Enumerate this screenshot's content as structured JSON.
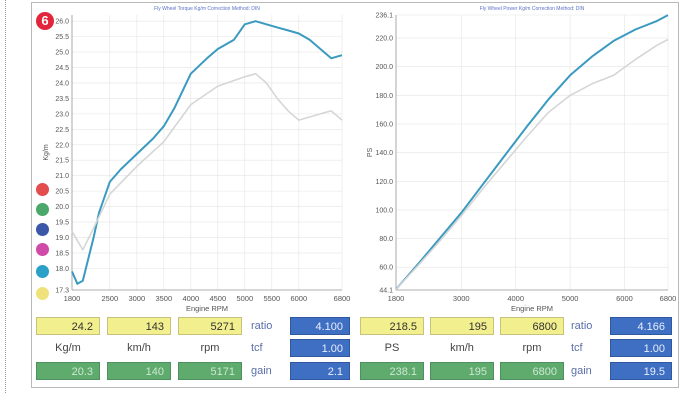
{
  "badge": "6",
  "colors": {
    "main_line": "#3a9ac0",
    "compare_line": "#d6d6d6",
    "grid": "#e4e4e4",
    "dots": [
      "#e24d4d",
      "#4aa86a",
      "#3b58a8",
      "#d04aa8",
      "#2aa0c8",
      "#f0e27a"
    ]
  },
  "torque_panel": {
    "header": "Fly Wheel Torque Kg/m   Correction Method: DIN",
    "chart_data": {
      "type": "line",
      "xlabel": "Engine RPM",
      "ylabel": "Kg/m",
      "x_ticks": [
        "1800",
        "2500",
        "3000",
        "3500",
        "4000",
        "4500",
        "5000",
        "5500",
        "6000",
        "6800"
      ],
      "y_ticks": [
        "17.3",
        "18.0",
        "18.5",
        "19.0",
        "19.5",
        "20.0",
        "20.5",
        "21.0",
        "21.5",
        "22.0",
        "22.5",
        "23.0",
        "23.5",
        "24.0",
        "24.5",
        "25.0",
        "25.5",
        "26.0"
      ],
      "xlim": [
        1800,
        6800
      ],
      "ylim": [
        17.3,
        26.2
      ],
      "series": [
        {
          "color": "main",
          "x": [
            1800,
            1900,
            2000,
            2100,
            2200,
            2300,
            2500,
            2700,
            3000,
            3300,
            3500,
            3700,
            4000,
            4300,
            4500,
            4800,
            5000,
            5200,
            5400,
            5600,
            5800,
            6000,
            6200,
            6400,
            6600,
            6800
          ],
          "y": [
            17.9,
            17.5,
            17.6,
            18.3,
            19.0,
            19.8,
            20.8,
            21.2,
            21.7,
            22.2,
            22.6,
            23.2,
            24.3,
            24.8,
            25.1,
            25.4,
            25.9,
            26.0,
            25.9,
            25.8,
            25.7,
            25.6,
            25.4,
            25.1,
            24.8,
            24.9
          ]
        },
        {
          "color": "compare",
          "x": [
            1800,
            2000,
            2200,
            2500,
            3000,
            3500,
            4000,
            4500,
            5000,
            5200,
            5400,
            5600,
            5800,
            6000,
            6200,
            6400,
            6600,
            6800
          ],
          "y": [
            19.2,
            18.6,
            19.3,
            20.4,
            21.3,
            22.1,
            23.3,
            23.9,
            24.2,
            24.3,
            24.0,
            23.5,
            23.1,
            22.8,
            22.9,
            23.0,
            23.1,
            22.8
          ]
        }
      ]
    },
    "readout": {
      "value1": "24.2",
      "value2": "143",
      "value3": "5271",
      "unit1": "Kg/m",
      "unit2": "km/h",
      "unit3": "rpm",
      "value4": "20.3",
      "value5": "140",
      "value6": "5171",
      "ratio_label": "ratio",
      "ratio_value": "4.100",
      "tcf_label": "tcf",
      "tcf_value": "1.00",
      "gain_label": "gain",
      "gain_value": "2.1"
    }
  },
  "power_panel": {
    "header": "Fly Wheel Power Kg/m   Correction Method: DIN",
    "chart_data": {
      "type": "line",
      "xlabel": "Engine RPM",
      "ylabel": "PS",
      "x_ticks": [
        "1800",
        "3000",
        "4000",
        "5000",
        "6000",
        "6800"
      ],
      "y_ticks": [
        "44.1",
        "60.0",
        "80.0",
        "100.0",
        "120.0",
        "140.0",
        "160.0",
        "180.0",
        "200.0",
        "220.0",
        "236.1"
      ],
      "xlim": [
        1800,
        6800
      ],
      "ylim": [
        44.1,
        236.1
      ],
      "series": [
        {
          "color": "main",
          "x": [
            1800,
            2200,
            2600,
            3000,
            3400,
            3800,
            4200,
            4600,
            5000,
            5400,
            5800,
            6200,
            6600,
            6800
          ],
          "y": [
            44.5,
            62,
            80,
            98,
            118,
            138,
            158,
            177,
            194,
            207,
            218,
            226,
            232,
            236
          ]
        },
        {
          "color": "compare",
          "x": [
            1800,
            2200,
            2600,
            3000,
            3400,
            3800,
            4200,
            4600,
            5000,
            5400,
            5800,
            6200,
            6600,
            6800
          ],
          "y": [
            44.5,
            61,
            78,
            96,
            115,
            133,
            151,
            168,
            180,
            188,
            194,
            205,
            215,
            219
          ]
        }
      ]
    },
    "readout": {
      "value1": "218.5",
      "value2": "195",
      "value3": "6800",
      "unit1": "PS",
      "unit2": "km/h",
      "unit3": "rpm",
      "value4": "238.1",
      "value5": "195",
      "value6": "6800",
      "ratio_label": "ratio",
      "ratio_value": "4.166",
      "tcf_label": "tcf",
      "tcf_value": "1.00",
      "gain_label": "gain",
      "gain_value": "19.5"
    }
  }
}
